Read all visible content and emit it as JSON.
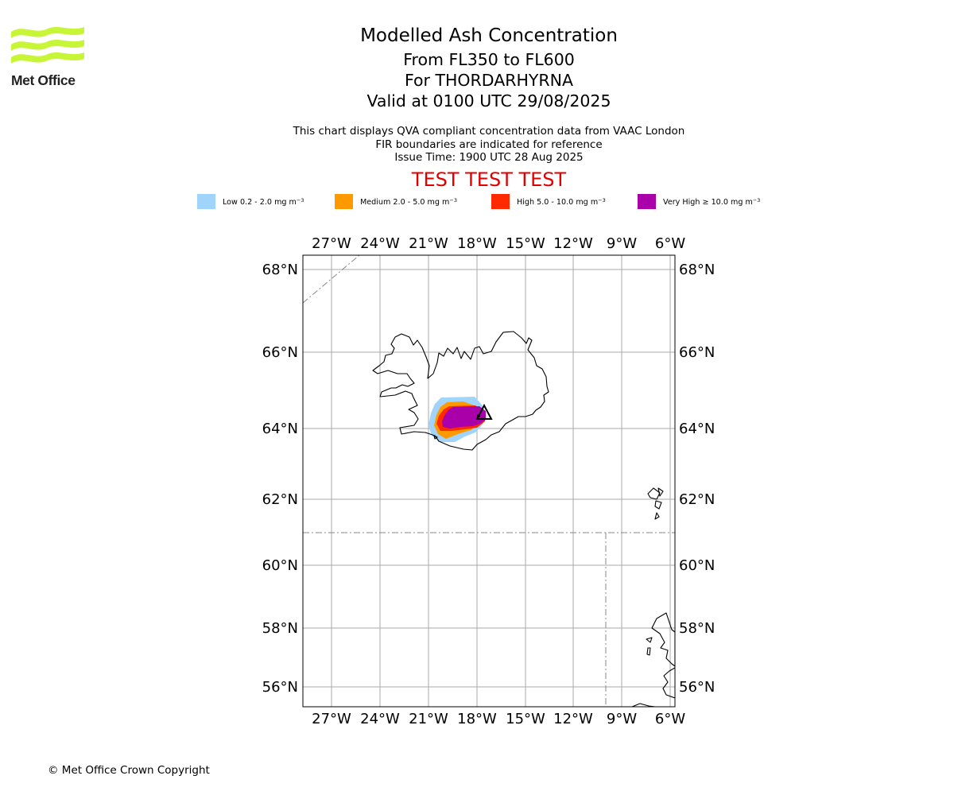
{
  "brand": {
    "name": "Met Office",
    "logo_color": "#c8f535",
    "copyright": "© Met Office Crown Copyright"
  },
  "title": {
    "main": "Modelled Ash Concentration",
    "levels": "From FL350 to FL600",
    "volcano": "For THORDARHYRNA",
    "valid": "Valid at 0100 UTC 29/08/2025"
  },
  "subtitle": {
    "line1": "This chart displays QVA compliant concentration data from VAAC London",
    "line2": "FIR boundaries are indicated for reference",
    "line3": "Issue Time: 1900 UTC 28 Aug 2025"
  },
  "test_banner": "TEST TEST TEST",
  "test_color": "#e00000",
  "legend": [
    {
      "prefix": "Low 0.2 - 2.0 mg m",
      "exp": "−3",
      "color": "#a0d4fa"
    },
    {
      "prefix": "Medium 2.0 - 5.0 mg m",
      "exp": "−3",
      "color": "#ff9900"
    },
    {
      "prefix": "High 5.0 - 10.0 mg m",
      "exp": "−3",
      "color": "#ff2a00"
    },
    {
      "prefix": "Very High  ≥  10.0 mg m",
      "exp": "−3",
      "color": "#aa00aa"
    }
  ],
  "map": {
    "lon_labels": [
      "27°W",
      "24°W",
      "21°W",
      "18°W",
      "15°W",
      "12°W",
      "9°W",
      "6°W"
    ],
    "lat_labels": [
      "68°N",
      "66°N",
      "64°N",
      "62°N",
      "60°N",
      "58°N",
      "56°N"
    ],
    "grid_color": "#aaaaaa",
    "fir_color": "#888888",
    "coast_color": "#000000",
    "volcano_symbol": "volcano-triangle-icon"
  }
}
